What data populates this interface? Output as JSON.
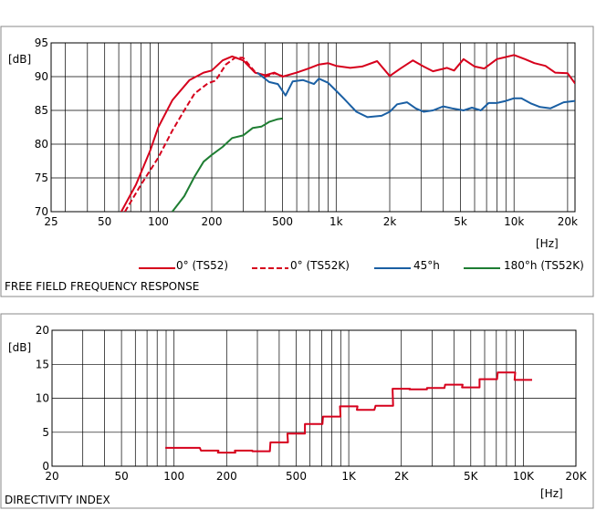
{
  "chart_data": [
    {
      "type": "line",
      "title": "FREE FIELD FREQUENCY RESPONSE",
      "xlabel": "[Hz]",
      "ylabel": "[dB]",
      "xscale": "log",
      "xlim": [
        25,
        22000
      ],
      "ylim": [
        70,
        95
      ],
      "grid": true,
      "legend_position": "bottom",
      "x_ticks": [
        {
          "v": 25,
          "label": "25"
        },
        {
          "v": 50,
          "label": "50"
        },
        {
          "v": 100,
          "label": "100"
        },
        {
          "v": 200,
          "label": "200"
        },
        {
          "v": 500,
          "label": "500"
        },
        {
          "v": 1000,
          "label": "1k"
        },
        {
          "v": 2000,
          "label": "2k"
        },
        {
          "v": 5000,
          "label": "5k"
        },
        {
          "v": 10000,
          "label": "10k"
        },
        {
          "v": 20000,
          "label": "20k"
        }
      ],
      "y_ticks": [
        70,
        75,
        80,
        85,
        90,
        95
      ],
      "series": [
        {
          "name": "0° (TS52)",
          "color": "#d6001c",
          "style": "solid",
          "points": [
            [
              62,
              70
            ],
            [
              75,
              74
            ],
            [
              90,
              79
            ],
            [
              100,
              82.5
            ],
            [
              120,
              86.5
            ],
            [
              150,
              89.5
            ],
            [
              180,
              90.6
            ],
            [
              200,
              90.9
            ],
            [
              230,
              92.4
            ],
            [
              260,
              93.0
            ],
            [
              300,
              92.4
            ],
            [
              350,
              90.6
            ],
            [
              400,
              90.2
            ],
            [
              450,
              90.6
            ],
            [
              500,
              90.0
            ],
            [
              600,
              90.6
            ],
            [
              700,
              91.2
            ],
            [
              800,
              91.8
            ],
            [
              900,
              92.0
            ],
            [
              1000,
              91.6
            ],
            [
              1200,
              91.3
            ],
            [
              1400,
              91.5
            ],
            [
              1700,
              92.3
            ],
            [
              2000,
              90.1
            ],
            [
              2300,
              91.2
            ],
            [
              2700,
              92.4
            ],
            [
              3100,
              91.5
            ],
            [
              3500,
              90.8
            ],
            [
              4200,
              91.3
            ],
            [
              4600,
              90.9
            ],
            [
              5200,
              92.6
            ],
            [
              6000,
              91.5
            ],
            [
              6800,
              91.2
            ],
            [
              8000,
              92.6
            ],
            [
              9000,
              92.9
            ],
            [
              10000,
              93.2
            ],
            [
              11500,
              92.6
            ],
            [
              13000,
              92.0
            ],
            [
              15000,
              91.6
            ],
            [
              17000,
              90.6
            ],
            [
              20000,
              90.5
            ],
            [
              22000,
              89.0
            ]
          ]
        },
        {
          "name": "0° (TS52K)",
          "color": "#d6001c",
          "style": "dashed",
          "points": [
            [
              65,
              70
            ],
            [
              80,
              74
            ],
            [
              100,
              78
            ],
            [
              120,
              82
            ],
            [
              140,
              85
            ],
            [
              160,
              87.5
            ],
            [
              190,
              89
            ],
            [
              210,
              89.4
            ],
            [
              240,
              91.8
            ],
            [
              270,
              92.8
            ],
            [
              300,
              92.8
            ],
            [
              350,
              90.7
            ],
            [
              400,
              90.0
            ],
            [
              450,
              90.5
            ],
            [
              500,
              90.1
            ]
          ]
        },
        {
          "name": "45°h",
          "color": "#1a5fa3",
          "style": "solid",
          "points": [
            [
              360,
              90.6
            ],
            [
              420,
              89.2
            ],
            [
              470,
              88.9
            ],
            [
              520,
              87.2
            ],
            [
              570,
              89.3
            ],
            [
              650,
              89.5
            ],
            [
              750,
              88.9
            ],
            [
              800,
              89.7
            ],
            [
              900,
              89.1
            ],
            [
              1000,
              87.9
            ],
            [
              1100,
              86.8
            ],
            [
              1300,
              84.8
            ],
            [
              1500,
              84.0
            ],
            [
              1800,
              84.2
            ],
            [
              2000,
              84.8
            ],
            [
              2200,
              85.9
            ],
            [
              2500,
              86.2
            ],
            [
              2800,
              85.3
            ],
            [
              3100,
              84.8
            ],
            [
              3500,
              85.0
            ],
            [
              4000,
              85.6
            ],
            [
              4500,
              85.3
            ],
            [
              5200,
              85.0
            ],
            [
              5800,
              85.4
            ],
            [
              6500,
              85.0
            ],
            [
              7200,
              86.1
            ],
            [
              8000,
              86.1
            ],
            [
              9000,
              86.4
            ],
            [
              10000,
              86.8
            ],
            [
              11000,
              86.8
            ],
            [
              12500,
              86.0
            ],
            [
              14000,
              85.5
            ],
            [
              16000,
              85.3
            ],
            [
              19000,
              86.2
            ],
            [
              22000,
              86.4
            ]
          ]
        },
        {
          "name": "180°h (TS52K)",
          "color": "#1e7d32",
          "style": "solid",
          "points": [
            [
              120,
              70
            ],
            [
              140,
              72.3
            ],
            [
              160,
              75.2
            ],
            [
              180,
              77.4
            ],
            [
              200,
              78.4
            ],
            [
              230,
              79.6
            ],
            [
              260,
              80.9
            ],
            [
              300,
              81.3
            ],
            [
              340,
              82.4
            ],
            [
              380,
              82.6
            ],
            [
              420,
              83.3
            ],
            [
              470,
              83.7
            ],
            [
              500,
              83.8
            ]
          ]
        }
      ]
    },
    {
      "type": "line",
      "title": "DIRECTIVITY INDEX",
      "xlabel": "[Hz]",
      "ylabel": "[dB]",
      "xscale": "log",
      "xlim": [
        20,
        20000
      ],
      "ylim": [
        0,
        20
      ],
      "grid": true,
      "x_ticks": [
        {
          "v": 20,
          "label": "20"
        },
        {
          "v": 50,
          "label": "50"
        },
        {
          "v": 100,
          "label": "100"
        },
        {
          "v": 200,
          "label": "200"
        },
        {
          "v": 500,
          "label": "500"
        },
        {
          "v": 1000,
          "label": "1K"
        },
        {
          "v": 2000,
          "label": "2K"
        },
        {
          "v": 5000,
          "label": "5K"
        },
        {
          "v": 10000,
          "label": "10K"
        },
        {
          "v": 20000,
          "label": "20K"
        }
      ],
      "y_ticks": [
        0,
        5,
        10,
        15,
        20
      ],
      "series": [
        {
          "name": "",
          "color": "#d6001c",
          "style": "step",
          "bands": [
            {
              "f": 100,
              "db": 2.7
            },
            {
              "f": 125,
              "db": 2.7
            },
            {
              "f": 160,
              "db": 2.3
            },
            {
              "f": 200,
              "db": 2.0
            },
            {
              "f": 250,
              "db": 2.3
            },
            {
              "f": 315,
              "db": 2.2
            },
            {
              "f": 400,
              "db": 3.5
            },
            {
              "f": 500,
              "db": 4.8
            },
            {
              "f": 630,
              "db": 6.2
            },
            {
              "f": 800,
              "db": 7.3
            },
            {
              "f": 1000,
              "db": 8.8
            },
            {
              "f": 1250,
              "db": 8.3
            },
            {
              "f": 1600,
              "db": 8.9
            },
            {
              "f": 2000,
              "db": 11.4
            },
            {
              "f": 2500,
              "db": 11.3
            },
            {
              "f": 3150,
              "db": 11.5
            },
            {
              "f": 4000,
              "db": 12.0
            },
            {
              "f": 5000,
              "db": 11.6
            },
            {
              "f": 6300,
              "db": 12.8
            },
            {
              "f": 8000,
              "db": 13.8
            },
            {
              "f": 10000,
              "db": 12.7
            }
          ]
        }
      ]
    }
  ]
}
